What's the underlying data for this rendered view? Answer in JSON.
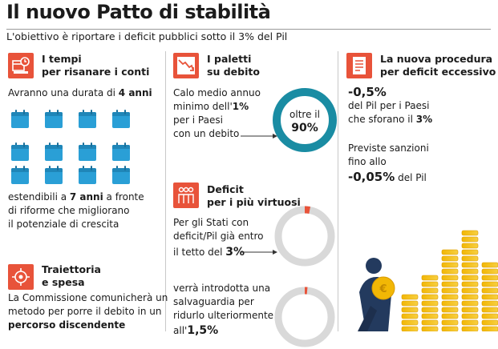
{
  "title": "Il nuovo Patto di stabilità",
  "subtitle": "L'obiettivo è riportare i deficit pubblici sotto il 3% del Pil",
  "colors": {
    "accent": "#e8533a",
    "teal": "#1a8ca3",
    "blue": "#2a9fd6",
    "ring": "#d9d9d9",
    "gold": "#f2b705"
  },
  "tempi": {
    "icon": "calendar-clock-icon",
    "heading1": "I tempi",
    "heading2": "per risanare i conti",
    "line1_pre": "Avranno una durata di ",
    "line1_bold": "4 anni",
    "text2_pre": "estendibili a ",
    "text2_bold": "7 anni",
    "text2_post": " a fronte",
    "text3": "di riforme che migliorano",
    "text4": "il potenziale di crescita"
  },
  "traiettoria": {
    "icon": "target-arrows-icon",
    "heading1": "Traiettoria",
    "heading2": "e spesa",
    "text1": "La Commissione comunicherà un",
    "text2": "metodo per porre il debito in un",
    "text3_bold": "percorso discendente"
  },
  "paletti": {
    "icon": "chart-down-icon",
    "heading1": "I paletti",
    "heading2": "su debito",
    "text1": "Calo medio annuo",
    "text2_pre": "minimo dell'",
    "text2_bold": "1%",
    "text3": "per i Paesi",
    "text4": "con un debito",
    "ring_label1": "oltre il",
    "ring_value": "90%",
    "ring_share": 1.0
  },
  "deficit": {
    "icon": "people-icon",
    "heading1": "Deficit",
    "heading2": "per i più virtuosi",
    "text1": "Per gli Stati con",
    "text2": "deficit/Pil già entro",
    "text3_pre": "il tetto del ",
    "text3_bold": "3%",
    "ring1_share": 0.03,
    "text4": "verrà introdotta una",
    "text5": "salvaguardia per",
    "text6": "ridurlo ulteriormente",
    "text7_pre": "all'",
    "text7_bold": "1,5%",
    "ring2_share": 0.015
  },
  "procedura": {
    "icon": "document-icon",
    "heading1": "La nuova procedura",
    "heading2": "per deficit eccessivo",
    "value1": "-0,5%",
    "text1": "del Pil per i Paesi",
    "text2_pre": "che sforano il ",
    "text2_bold": "3%",
    "text3": "Previste sanzioni",
    "text4": "fino allo",
    "value2": "-0,05%",
    "value2_post": " del Pil",
    "illustration": "person-with-coins-icon"
  }
}
